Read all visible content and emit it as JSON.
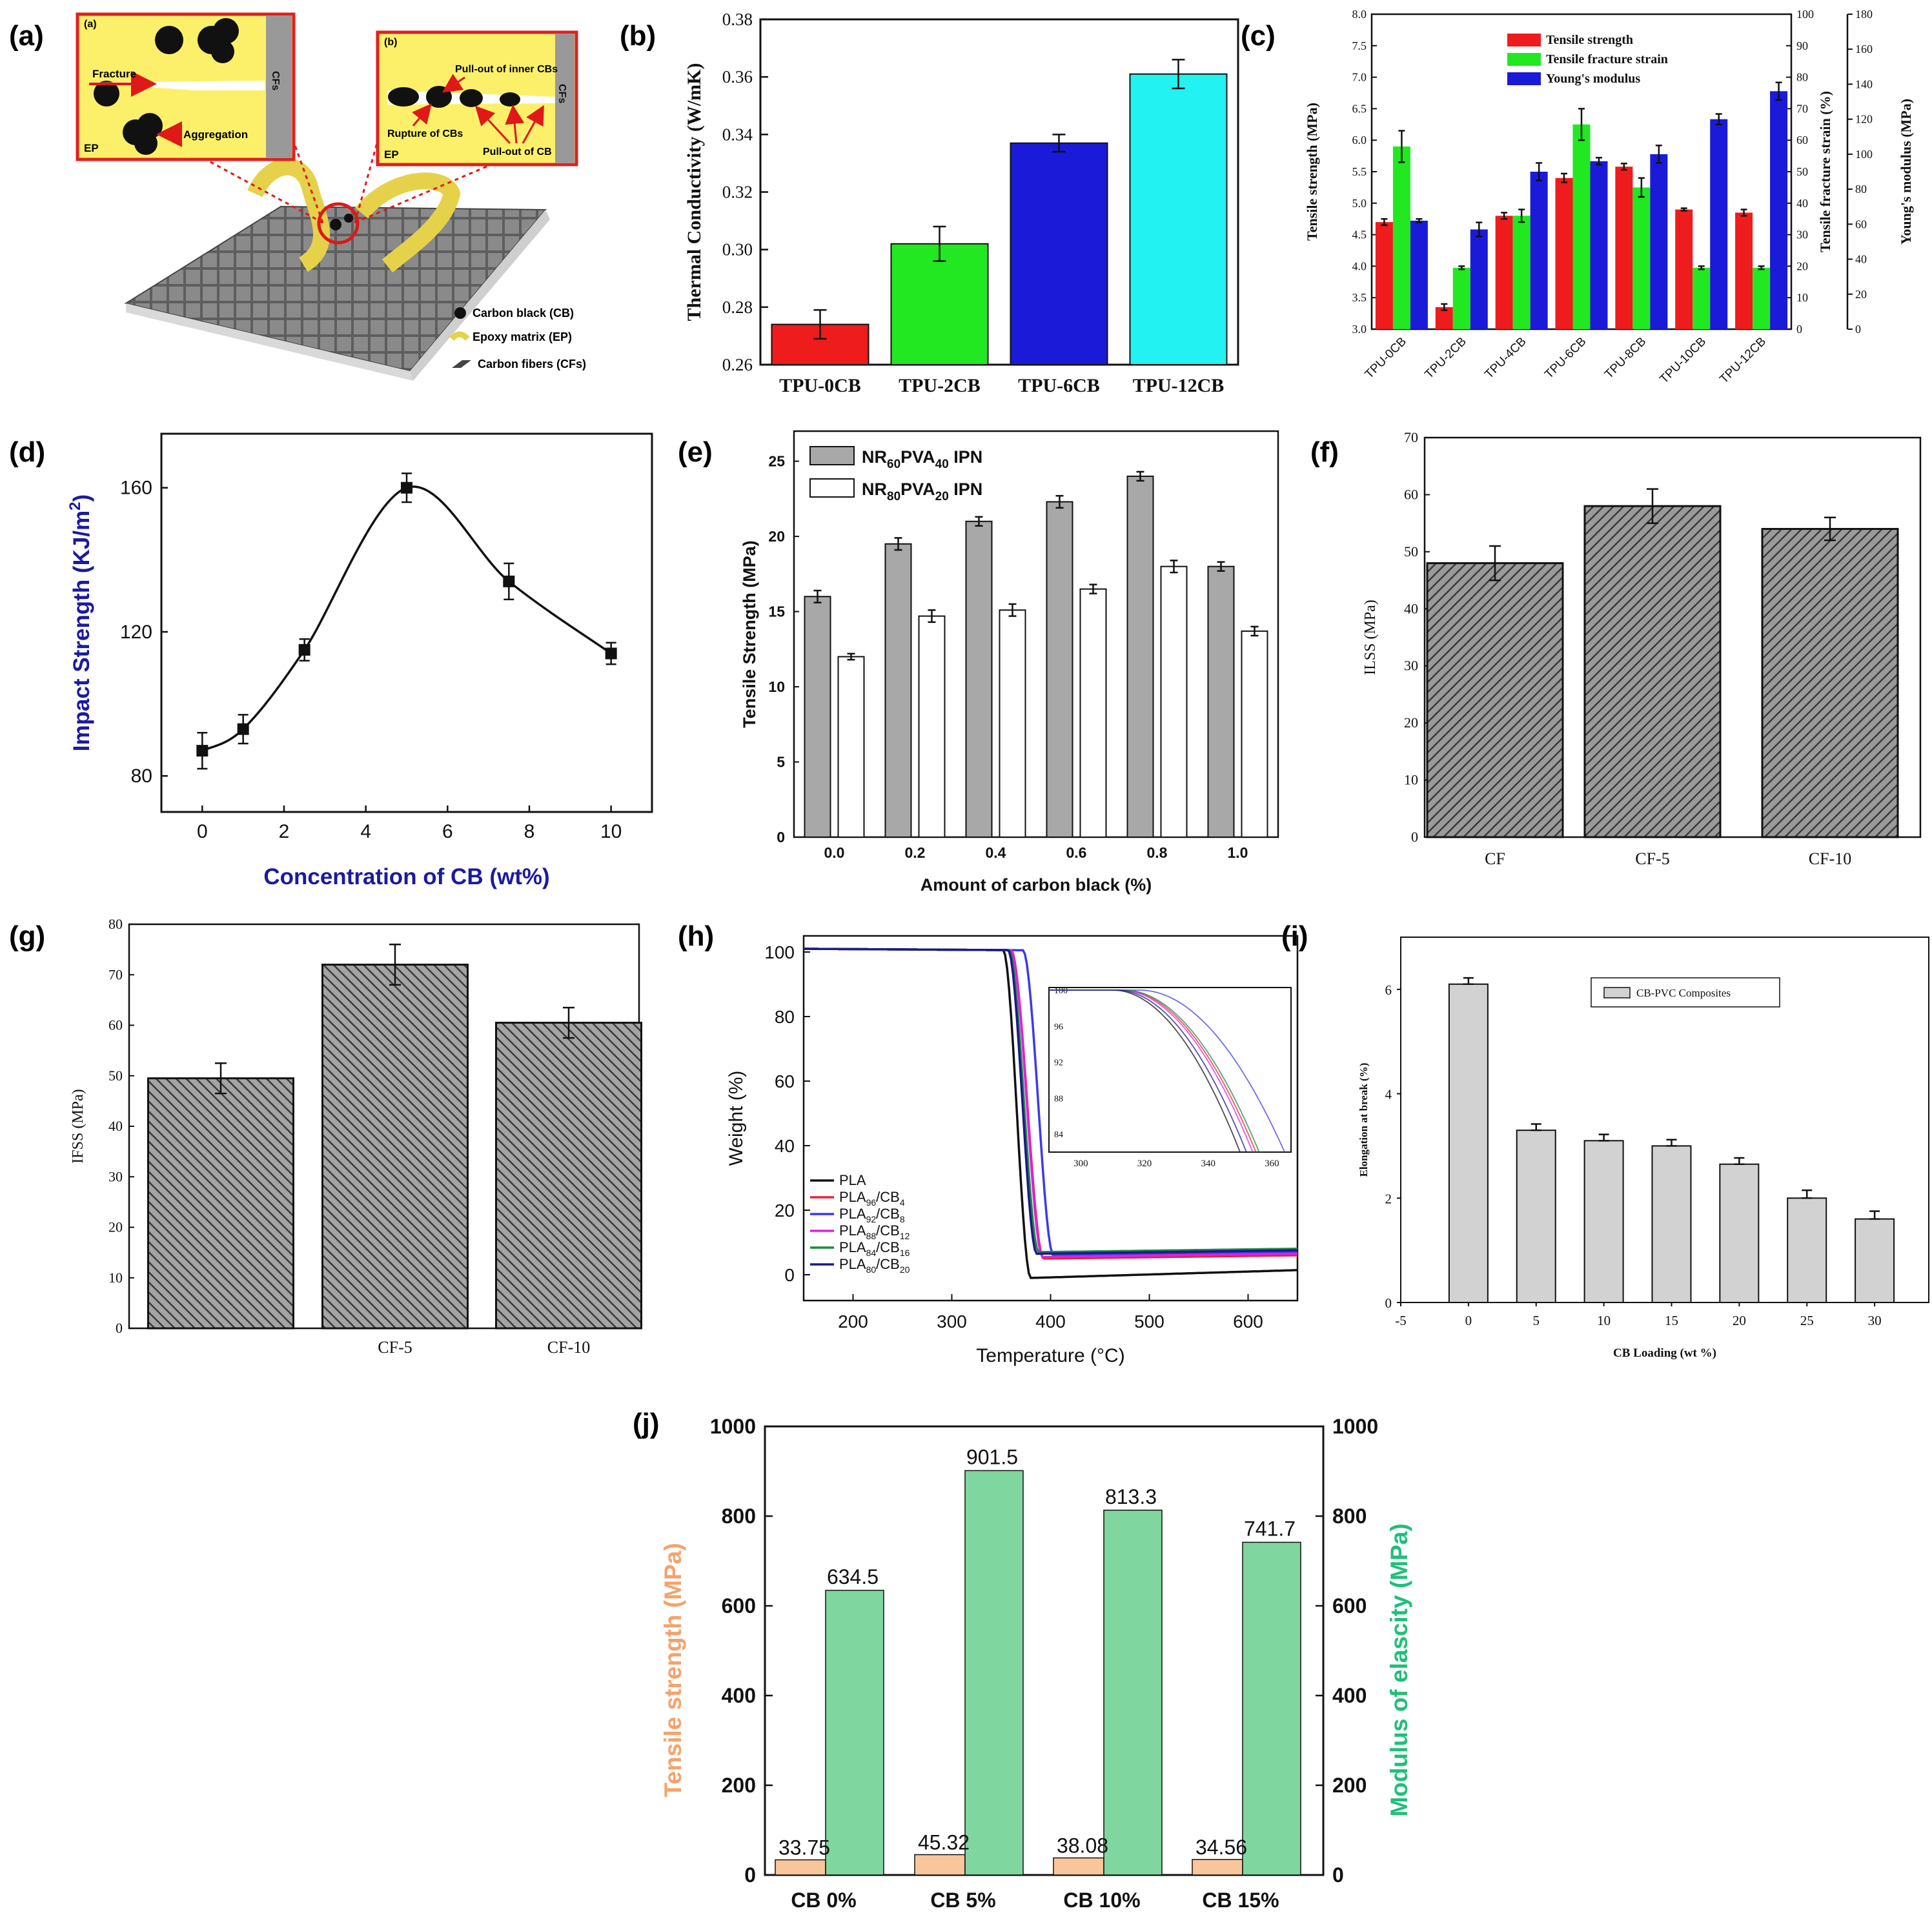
{
  "colors": {
    "red": "#ee1c1c",
    "green": "#22e822",
    "blue": "#1a1ad8",
    "cyan": "#22f2f2",
    "navy": "#1a1aa0",
    "gray": "#a8a8a8",
    "orange": "#f9c59a",
    "mint": "#7fd69e",
    "tsLabel": "#f4a36b",
    "modLabel": "#1fc07a"
  },
  "panel_labels": {
    "a": "(a)",
    "b": "(b)",
    "c": "(c)",
    "d": "(d)",
    "e": "(e)",
    "f": "(f)",
    "g": "(g)",
    "h": "(h)",
    "i": "(i)",
    "j": "(j)"
  },
  "schematic": {
    "inset_a": {
      "tag": "(a)",
      "fracture": "Fracture",
      "aggregation": "Aggregation",
      "ep": "EP",
      "cfs": "CFs"
    },
    "inset_b": {
      "tag": "(b)",
      "pullout_inner": "Pull-out of inner CBs",
      "rupture": "Rupture of CBs",
      "pullout_cb": "Pull-out of CB",
      "ep": "EP",
      "cfs": "CFs"
    },
    "legend": [
      "Carbon black (CB)",
      "Epoxy matrix (EP)",
      "Carbon fibers (CFs)"
    ]
  },
  "chart_data": [
    {
      "id": "b",
      "type": "bar",
      "ylabel": "Thermal Conductivity (W/mK)",
      "categories": [
        "TPU-0CB",
        "TPU-2CB",
        "TPU-6CB",
        "TPU-12CB"
      ],
      "values": [
        0.274,
        0.302,
        0.337,
        0.361
      ],
      "errors": [
        0.005,
        0.006,
        0.003,
        0.005
      ],
      "ylim": [
        0.26,
        0.38
      ],
      "ticks": [
        "0.26",
        "0.28",
        "0.30",
        "0.32",
        "0.34",
        "0.36",
        "0.38"
      ]
    },
    {
      "id": "c",
      "type": "bar",
      "ylabel_left": "Tensile strength (MPa)",
      "ylabel_right1": "Tensile fracture strain (%)",
      "ylabel_right2": "Young's modulus (MPa)",
      "categories": [
        "TPU-0CB",
        "TPU-2CB",
        "TPU-4CB",
        "TPU-6CB",
        "TPU-8CB",
        "TPU-10CB",
        "TPU-12CB"
      ],
      "series": [
        {
          "name": "Tensile strength",
          "values": [
            4.7,
            3.35,
            4.8,
            5.4,
            5.58,
            4.9,
            4.85
          ],
          "errors": [
            0.05,
            0.05,
            0.05,
            0.07,
            0.05,
            0.02,
            0.05
          ]
        },
        {
          "name": "Tensile fracture strain",
          "values": [
            58,
            19.5,
            36,
            65,
            45,
            19.5,
            19.5
          ],
          "errors": [
            5,
            0.5,
            2,
            5,
            3,
            0.5,
            0.5
          ]
        },
        {
          "name": "Young's modulus",
          "values": [
            62,
            57,
            90,
            96,
            100,
            120,
            136
          ],
          "errors": [
            1,
            4,
            5,
            2,
            5,
            3,
            5
          ]
        }
      ],
      "ylim_left": [
        3.0,
        8.0
      ],
      "ylim_right1": [
        0,
        100
      ],
      "ylim_right2": [
        0,
        180
      ],
      "ticks_left": [
        "3.0",
        "3.5",
        "4.0",
        "4.5",
        "5.0",
        "5.5",
        "6.0",
        "6.5",
        "7.0",
        "7.5",
        "8.0"
      ],
      "ticks_r1": [
        "0",
        "10",
        "20",
        "30",
        "40",
        "50",
        "60",
        "70",
        "80",
        "90",
        "100"
      ],
      "ticks_r2": [
        "0",
        "20",
        "40",
        "60",
        "80",
        "100",
        "120",
        "140",
        "160",
        "180"
      ]
    },
    {
      "id": "d",
      "type": "line",
      "xlabel": "Concentration of CB (wt%)",
      "ylabel": "Impact Strength (KJ/m",
      "ylabel_sup": "2",
      "ylabel_end": ")",
      "x": [
        0,
        1,
        2.5,
        5,
        7.5,
        10
      ],
      "y": [
        87,
        93,
        115,
        160,
        134,
        114
      ],
      "errors": [
        5,
        4,
        3,
        4,
        5,
        3
      ],
      "xlim": [
        -1,
        11
      ],
      "ylim": [
        70,
        175
      ],
      "xticks": [
        "0",
        "2",
        "4",
        "6",
        "8",
        "10"
      ],
      "yticks": [
        "80",
        "120",
        "160"
      ]
    },
    {
      "id": "e",
      "type": "bar",
      "xlabel": "Amount of carbon black (%)",
      "ylabel": "Tensile Strength (MPa)",
      "categories": [
        "0.0",
        "0.2",
        "0.4",
        "0.6",
        "0.8",
        "1.0"
      ],
      "series": [
        {
          "name": "NR60PVA40 IPN",
          "base": "NR",
          "sub1": "60",
          "mid": "PVA",
          "sub2": "40",
          "end": " IPN",
          "values": [
            16,
            19.5,
            21,
            22.3,
            24,
            18
          ],
          "errors": [
            0.4,
            0.4,
            0.3,
            0.4,
            0.3,
            0.3
          ]
        },
        {
          "name": "NR80PVA20 IPN",
          "base": "NR",
          "sub1": "80",
          "mid": "PVA",
          "sub2": "20",
          "end": " IPN",
          "values": [
            12,
            14.7,
            15.1,
            16.5,
            18,
            13.7
          ],
          "errors": [
            0.2,
            0.4,
            0.4,
            0.3,
            0.4,
            0.3
          ]
        }
      ],
      "ylim": [
        0,
        27
      ],
      "ticks": [
        "0",
        "5",
        "10",
        "15",
        "20",
        "25"
      ]
    },
    {
      "id": "f",
      "type": "bar",
      "ylabel": "ILSS (MPa)",
      "categories": [
        "CF",
        "CF-5",
        "CF-10"
      ],
      "values": [
        48,
        58,
        54
      ],
      "errors": [
        3,
        3,
        2
      ],
      "ylim": [
        0,
        70
      ],
      "ticks": [
        "0",
        "10",
        "20",
        "30",
        "40",
        "50",
        "60",
        "70"
      ]
    },
    {
      "id": "g",
      "type": "bar",
      "ylabel": "IFSS (MPa)",
      "categories": [
        "",
        "CF-5",
        "CF-10"
      ],
      "values": [
        49.5,
        72,
        60.5
      ],
      "errors": [
        3,
        4,
        3
      ],
      "ylim": [
        0,
        80
      ],
      "ticks": [
        "0",
        "10",
        "20",
        "30",
        "40",
        "50",
        "60",
        "70",
        "80"
      ]
    },
    {
      "id": "h",
      "type": "line",
      "xlabel": "Temperature (°C)",
      "ylabel": "Weight (%)",
      "xticks": [
        "200",
        "300",
        "400",
        "500",
        "600"
      ],
      "yticks": [
        "0",
        "20",
        "40",
        "60",
        "80",
        "100"
      ],
      "xlim": [
        150,
        650
      ],
      "ylim": [
        -8,
        105
      ],
      "series": [
        {
          "name": "PLA",
          "label": "PLA",
          "color": "#111111",
          "onset": 352,
          "end": 380,
          "final": -1,
          "slope": 0.009
        },
        {
          "name": "PLA96/CB4",
          "label": "PLA",
          "sub": "96",
          "cb": "4",
          "color": "#e8213a",
          "onset": 360,
          "end": 393,
          "final": 5,
          "slope": 0.004
        },
        {
          "name": "PLA92/CB8",
          "label": "PLA",
          "sub": "92",
          "cb": "8",
          "color": "#3a3ae8",
          "onset": 372,
          "end": 403,
          "final": 6,
          "slope": 0.0045
        },
        {
          "name": "PLA88/CB12",
          "label": "PLA",
          "sub": "88",
          "cb": "12",
          "color": "#e020e0",
          "onset": 360,
          "end": 392,
          "final": 5.5,
          "slope": 0.004
        },
        {
          "name": "PLA84/CB16",
          "label": "PLA",
          "sub": "84",
          "cb": "16",
          "color": "#1c8a3a",
          "onset": 358,
          "end": 388,
          "final": 7,
          "slope": 0.004
        },
        {
          "name": "PLA80/CB20",
          "label": "PLA",
          "sub": "80",
          "cb": "20",
          "color": "#1a1a8a",
          "onset": 357,
          "end": 386,
          "final": 6.5,
          "slope": 0.004
        }
      ],
      "inset": {
        "xticks": [
          "300",
          "320",
          "340",
          "360"
        ],
        "yticks": [
          "84",
          "88",
          "92",
          "96",
          "100"
        ],
        "xlim": [
          290,
          366
        ],
        "ylim": [
          82,
          100
        ]
      }
    },
    {
      "id": "i",
      "type": "bar",
      "xlabel": "CB Loading (wt %)",
      "ylabel": "Elongation at break (%)",
      "legend": "CB-PVC Composites",
      "x": [
        0,
        5,
        10,
        15,
        20,
        25,
        30
      ],
      "values": [
        6.1,
        3.3,
        3.1,
        3.0,
        2.65,
        2.0,
        1.6
      ],
      "errors": [
        0.12,
        0.12,
        0.12,
        0.12,
        0.12,
        0.15,
        0.15
      ],
      "xlim": [
        -5,
        34
      ],
      "ylim": [
        0,
        7
      ],
      "xticks": [
        "-5",
        "0",
        "5",
        "10",
        "15",
        "20",
        "25",
        "30"
      ],
      "yticks": [
        "0",
        "2",
        "4",
        "6"
      ]
    },
    {
      "id": "j",
      "type": "bar",
      "ylabel_left": "Tensile strength (MPa)",
      "ylabel_right": "Modulus of elascity (MPa)",
      "categories": [
        "CB 0%",
        "CB 5%",
        "CB 10%",
        "CB 15%"
      ],
      "series": [
        {
          "name": "Tensile strength",
          "values": [
            33.75,
            45.32,
            38.08,
            34.56
          ],
          "labels": [
            "33.75",
            "45.32",
            "38.08",
            "34.56"
          ]
        },
        {
          "name": "Modulus of elasticity",
          "values": [
            634.5,
            901.5,
            813.3,
            741.7
          ],
          "labels": [
            "634.5",
            "901.5",
            "813.3",
            "741.7"
          ]
        }
      ],
      "ylim": [
        0,
        1000
      ],
      "ticks": [
        "0",
        "200",
        "400",
        "600",
        "800",
        "1000"
      ]
    }
  ]
}
